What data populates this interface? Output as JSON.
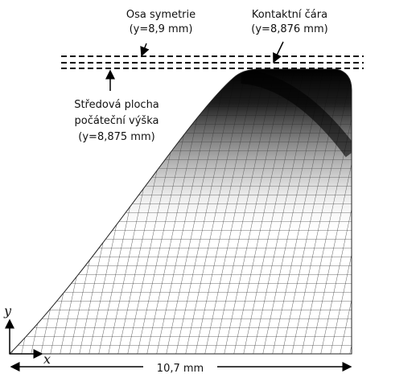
{
  "labels": {
    "symmetry_axis": {
      "title": "Osa symetrie",
      "value": "(y=8,9 mm)"
    },
    "contact_line": {
      "title": "Kontaktní čára",
      "value": "(y=8,876 mm)"
    },
    "midsurface": {
      "title": "Středová plocha",
      "subtitle": "počáteční výška",
      "value": "(y=8,875 mm)"
    }
  },
  "axes": {
    "y": "y",
    "x": "x"
  },
  "dimension": "10,7 mm"
}
